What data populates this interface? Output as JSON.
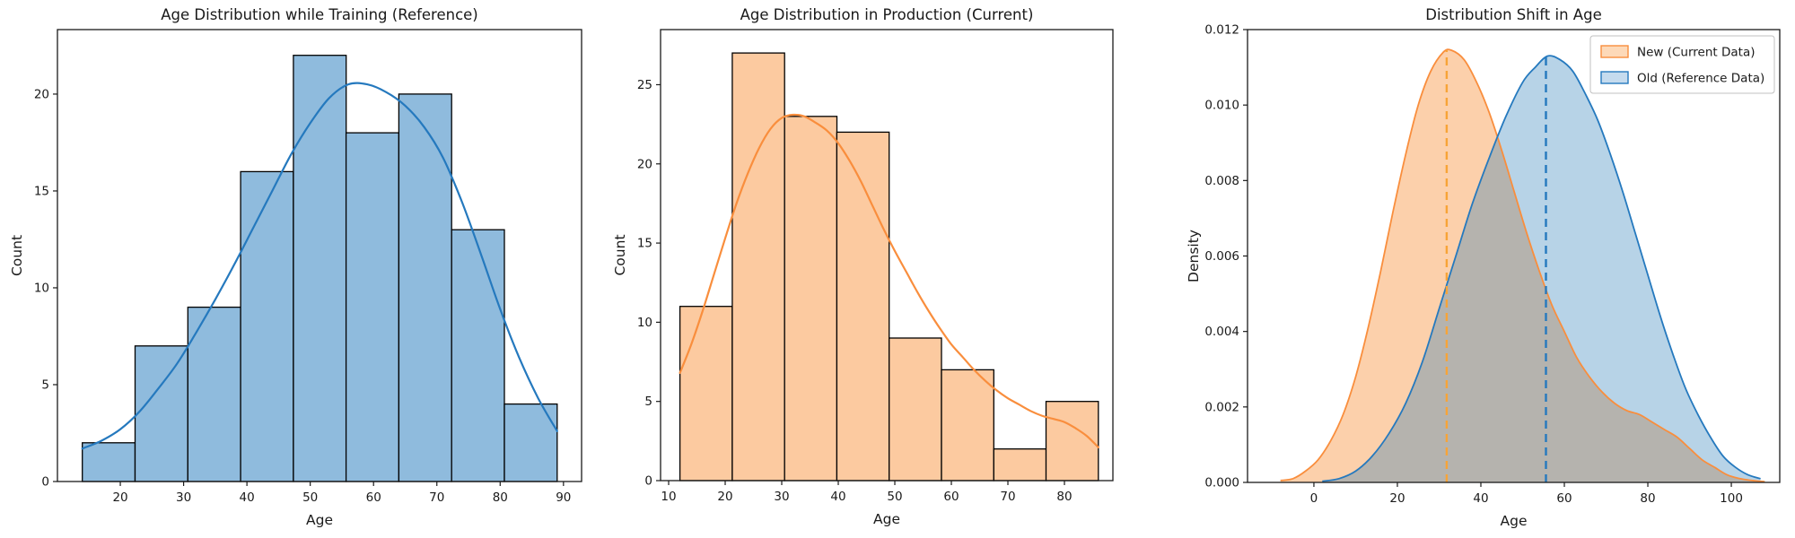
{
  "figure": {
    "background": "#ffffff",
    "text_color": "#1a1a1a",
    "spine_color": "#1a1a1a"
  },
  "chart_data": [
    {
      "type": "bar",
      "subtype": "histogram-with-kde",
      "title": "Age Distribution while Training (Reference)",
      "xlabel": "Age",
      "ylabel": "Count",
      "bin_start": 14,
      "bin_width": 8.3333,
      "bin_counts": [
        2,
        7,
        9,
        16,
        22,
        18,
        20,
        13,
        4
      ],
      "x_ticks": [
        20,
        30,
        40,
        50,
        60,
        70,
        80,
        90
      ],
      "x_tick_labels": [
        "20",
        "30",
        "40",
        "50",
        "60",
        "70",
        "80",
        "90"
      ],
      "y_ticks": [
        0,
        5,
        10,
        15,
        20
      ],
      "y_tick_labels": [
        "0",
        "5",
        "10",
        "15",
        "20"
      ],
      "xlim": [
        10.07,
        92.86
      ],
      "ylim": [
        0,
        23.33
      ],
      "bar_fill": "#8fbbdd",
      "bar_edge": "#000000",
      "kde_color": "#2579be",
      "kde_points": [
        [
          14,
          1.7
        ],
        [
          17,
          2.1
        ],
        [
          20,
          2.7
        ],
        [
          23,
          3.6
        ],
        [
          26,
          4.8
        ],
        [
          29,
          6.1
        ],
        [
          32,
          7.7
        ],
        [
          35,
          9.4
        ],
        [
          38,
          11.2
        ],
        [
          41,
          13.1
        ],
        [
          44,
          15.0
        ],
        [
          47,
          16.9
        ],
        [
          50,
          18.5
        ],
        [
          53,
          19.8
        ],
        [
          56,
          20.5
        ],
        [
          59,
          20.5
        ],
        [
          62,
          20.1
        ],
        [
          65,
          19.4
        ],
        [
          68,
          18.3
        ],
        [
          71,
          16.7
        ],
        [
          74,
          14.4
        ],
        [
          77,
          11.7
        ],
        [
          80,
          8.9
        ],
        [
          83,
          6.4
        ],
        [
          86,
          4.3
        ],
        [
          89,
          2.6
        ]
      ]
    },
    {
      "type": "bar",
      "subtype": "histogram-with-kde",
      "title": "Age Distribution in Production (Current)",
      "xlabel": "Age",
      "ylabel": "Count",
      "bin_start": 12,
      "bin_width": 9.25,
      "bin_counts": [
        11,
        27,
        23,
        22,
        9,
        7,
        2,
        5
      ],
      "x_ticks": [
        10,
        20,
        30,
        40,
        50,
        60,
        70,
        80
      ],
      "x_tick_labels": [
        "10",
        "20",
        "30",
        "40",
        "50",
        "60",
        "70",
        "80"
      ],
      "y_ticks": [
        0,
        5,
        10,
        15,
        20,
        25
      ],
      "y_tick_labels": [
        "0",
        "5",
        "10",
        "15",
        "20",
        "25"
      ],
      "xlim": [
        8.57,
        88.57
      ],
      "ylim": [
        0,
        28.48
      ],
      "bar_fill": "#fccaa0",
      "bar_edge": "#000000",
      "kde_color": "#f98e3d",
      "kde_points": [
        [
          12,
          6.8
        ],
        [
          14,
          8.6
        ],
        [
          16,
          10.7
        ],
        [
          18,
          13.0
        ],
        [
          20,
          15.3
        ],
        [
          22,
          17.5
        ],
        [
          24,
          19.4
        ],
        [
          26,
          21.0
        ],
        [
          28,
          22.2
        ],
        [
          30,
          22.9
        ],
        [
          32,
          23.1
        ],
        [
          34,
          23.0
        ],
        [
          36,
          22.6
        ],
        [
          38,
          22.1
        ],
        [
          40,
          21.3
        ],
        [
          42,
          20.2
        ],
        [
          44,
          18.9
        ],
        [
          46,
          17.4
        ],
        [
          48,
          15.9
        ],
        [
          50,
          14.5
        ],
        [
          52,
          13.2
        ],
        [
          54,
          11.9
        ],
        [
          56,
          10.7
        ],
        [
          58,
          9.6
        ],
        [
          60,
          8.6
        ],
        [
          62,
          7.8
        ],
        [
          64,
          7.0
        ],
        [
          66,
          6.3
        ],
        [
          68,
          5.7
        ],
        [
          70,
          5.2
        ],
        [
          72,
          4.8
        ],
        [
          74,
          4.4
        ],
        [
          76,
          4.1
        ],
        [
          78,
          3.9
        ],
        [
          80,
          3.7
        ],
        [
          82,
          3.3
        ],
        [
          84,
          2.8
        ],
        [
          86,
          2.1
        ]
      ]
    },
    {
      "type": "area",
      "subtype": "kde-comparison",
      "title": "Distribution Shift in Age",
      "xlabel": "Age",
      "ylabel": "Density",
      "x_ticks": [
        0,
        20,
        40,
        60,
        80,
        100
      ],
      "x_tick_labels": [
        "0",
        "20",
        "40",
        "60",
        "80",
        "100"
      ],
      "y_ticks": [
        0,
        0.002,
        0.004,
        0.006,
        0.008,
        0.01,
        0.012
      ],
      "y_tick_labels": [
        "0.000",
        "0.002",
        "0.004",
        "0.006",
        "0.008",
        "0.010",
        "0.012"
      ],
      "xlim": [
        -15.9,
        111.6
      ],
      "ylim": [
        0,
        0.012
      ],
      "legend_position": "upper-right",
      "series": [
        {
          "name": "New (Current Data)",
          "line_color": "#f98e3d",
          "fill_color": "rgba(247,126,23,0.36)",
          "mean": 31.8,
          "mean_line_color": "#f7a437",
          "peak_density": 0.01145,
          "points": [
            [
              -8,
              5e-05
            ],
            [
              -5,
              0.0001
            ],
            [
              -2,
              0.0003
            ],
            [
              1,
              0.0006
            ],
            [
              4,
              0.0011
            ],
            [
              7,
              0.0018
            ],
            [
              10,
              0.0028
            ],
            [
              13,
              0.0041
            ],
            [
              16,
              0.0056
            ],
            [
              19,
              0.0072
            ],
            [
              22,
              0.0087
            ],
            [
              25,
              0.01
            ],
            [
              28,
              0.0109
            ],
            [
              31,
              0.0114
            ],
            [
              33,
              0.01145
            ],
            [
              36,
              0.0112
            ],
            [
              39,
              0.0106
            ],
            [
              42,
              0.0098
            ],
            [
              45,
              0.0088
            ],
            [
              48,
              0.0077
            ],
            [
              51,
              0.0066
            ],
            [
              54,
              0.0056
            ],
            [
              57,
              0.0047
            ],
            [
              60,
              0.004
            ],
            [
              63,
              0.0033
            ],
            [
              66,
              0.0028
            ],
            [
              69,
              0.0024
            ],
            [
              72,
              0.0021
            ],
            [
              75,
              0.0019
            ],
            [
              78,
              0.0018
            ],
            [
              81,
              0.0016
            ],
            [
              84,
              0.0014
            ],
            [
              87,
              0.0012
            ],
            [
              90,
              0.0009
            ],
            [
              93,
              0.0006
            ],
            [
              96,
              0.0004
            ],
            [
              99,
              0.0002
            ],
            [
              102,
              0.0001
            ],
            [
              105,
              5e-05
            ],
            [
              108,
              2e-05
            ]
          ]
        },
        {
          "name": "Old (Reference Data)",
          "line_color": "#2579be",
          "fill_color": "rgba(31,119,180,0.32)",
          "mean": 55.6,
          "mean_line_color": "#2579be",
          "peak_density": 0.0113,
          "points": [
            [
              2,
              3e-05
            ],
            [
              6,
              0.0001
            ],
            [
              10,
              0.0003
            ],
            [
              14,
              0.0007
            ],
            [
              18,
              0.0013
            ],
            [
              22,
              0.0021
            ],
            [
              26,
              0.0032
            ],
            [
              30,
              0.0046
            ],
            [
              34,
              0.006
            ],
            [
              38,
              0.0074
            ],
            [
              42,
              0.0086
            ],
            [
              46,
              0.0097
            ],
            [
              50,
              0.0106
            ],
            [
              53,
              0.011
            ],
            [
              56,
              0.0113
            ],
            [
              59,
              0.0112
            ],
            [
              62,
              0.0109
            ],
            [
              65,
              0.0103
            ],
            [
              68,
              0.0096
            ],
            [
              71,
              0.0087
            ],
            [
              74,
              0.0077
            ],
            [
              77,
              0.0066
            ],
            [
              80,
              0.0055
            ],
            [
              83,
              0.0044
            ],
            [
              86,
              0.0034
            ],
            [
              89,
              0.0025
            ],
            [
              92,
              0.0018
            ],
            [
              95,
              0.0012
            ],
            [
              98,
              0.0007
            ],
            [
              101,
              0.0004
            ],
            [
              104,
              0.0002
            ],
            [
              107,
              0.0001
            ]
          ]
        }
      ],
      "legend_items": [
        {
          "label": "New (Current Data)",
          "swatch_fill": "#fdd9b8",
          "swatch_edge": "#f98e3d"
        },
        {
          "label": "Old (Reference Data)",
          "swatch_fill": "#c5dbee",
          "swatch_edge": "#2579be"
        }
      ]
    }
  ]
}
